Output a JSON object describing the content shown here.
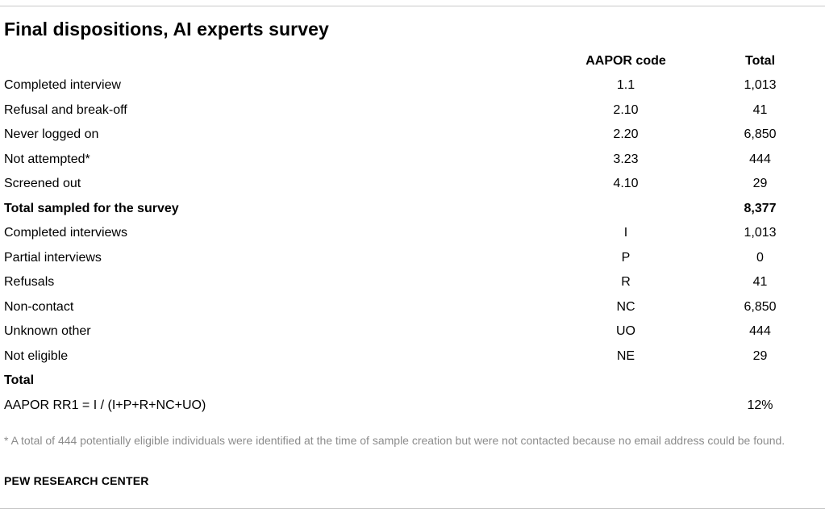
{
  "title": "Final dispositions, AI experts survey",
  "table": {
    "headers": {
      "label": "",
      "code": "AAPOR code",
      "total": "Total"
    },
    "rows": [
      {
        "label": "Completed interview",
        "code": "1.1",
        "total": "1,013",
        "bold": false
      },
      {
        "label": "Refusal and break-off",
        "code": "2.10",
        "total": "41",
        "bold": false
      },
      {
        "label": "Never logged on",
        "code": "2.20",
        "total": "6,850",
        "bold": false
      },
      {
        "label": "Not attempted*",
        "code": "3.23",
        "total": "444",
        "bold": false
      },
      {
        "label": "Screened out",
        "code": "4.10",
        "total": "29",
        "bold": false
      },
      {
        "label": "Total sampled for the survey",
        "code": "",
        "total": "8,377",
        "bold": true
      },
      {
        "label": "Completed interviews",
        "code": "I",
        "total": "1,013",
        "bold": false
      },
      {
        "label": "Partial interviews",
        "code": "P",
        "total": "0",
        "bold": false
      },
      {
        "label": "Refusals",
        "code": "R",
        "total": "41",
        "bold": false
      },
      {
        "label": "Non-contact",
        "code": "NC",
        "total": "6,850",
        "bold": false
      },
      {
        "label": "Unknown other",
        "code": "UO",
        "total": "444",
        "bold": false
      },
      {
        "label": "Not eligible",
        "code": "NE",
        "total": "29",
        "bold": false
      },
      {
        "label": "Total",
        "code": "",
        "total": "",
        "bold": true
      },
      {
        "label": "AAPOR RR1 = I / (I+P+R+NC+UO)",
        "code": "",
        "total": "12%",
        "bold": false,
        "total_bold": true
      }
    ]
  },
  "footnote": "* A total of 444 potentially eligible individuals were identified at the time of sample creation but were not contacted because no email address could be found.",
  "source": "PEW RESEARCH CENTER"
}
